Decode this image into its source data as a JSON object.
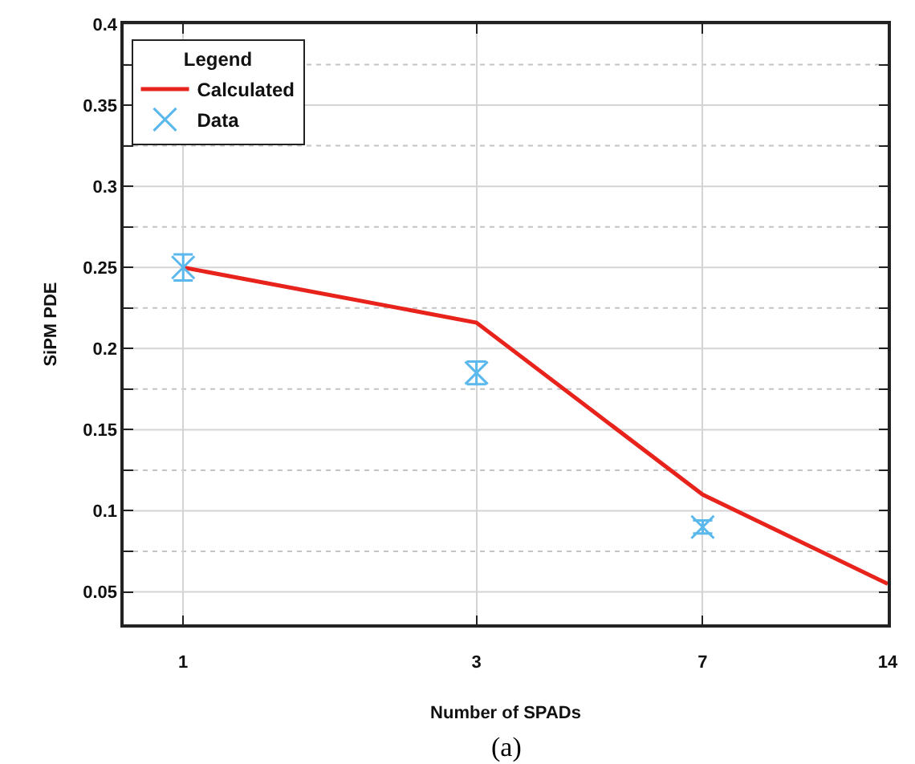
{
  "chart_data": {
    "type": "line",
    "xlabel": "Number of SPADs",
    "ylabel": "SiPM PDE",
    "legend_title": "Legend",
    "x": [
      1,
      3,
      7,
      14
    ],
    "log": "x",
    "xlim": [
      0.8,
      14
    ],
    "xticks": [
      1,
      3,
      7,
      14
    ],
    "ylim": [
      0.03,
      0.4
    ],
    "yticks": [
      0.05,
      {
        "value": 0.075,
        "label": null
      },
      0.1,
      {
        "value": 0.125,
        "label": null
      },
      0.15,
      {
        "value": 0.175,
        "label": null
      },
      0.2,
      {
        "value": 0.225,
        "label": null
      },
      0.25,
      {
        "value": 0.275,
        "label": null
      },
      0.3,
      {
        "value": 0.325,
        "label": null
      },
      0.35,
      {
        "value": 0.375,
        "label": null
      },
      0.4
    ],
    "grid": true,
    "legend": "top left",
    "marker": "cross",
    "series": [
      {
        "name": "Calculated",
        "marker": "none",
        "color": "#e8231c",
        "values": [
          0.25,
          0.216,
          0.11,
          0.055
        ]
      },
      {
        "name": "Data",
        "type": "scatter",
        "color": "#5ab8ec",
        "x": [
          1,
          3,
          7
        ],
        "values": [
          0.25,
          0.185,
          0.09
        ],
        "errors": [
          0.008,
          0.007,
          0.004
        ]
      }
    ],
    "annotations": [
      "(a)"
    ]
  }
}
